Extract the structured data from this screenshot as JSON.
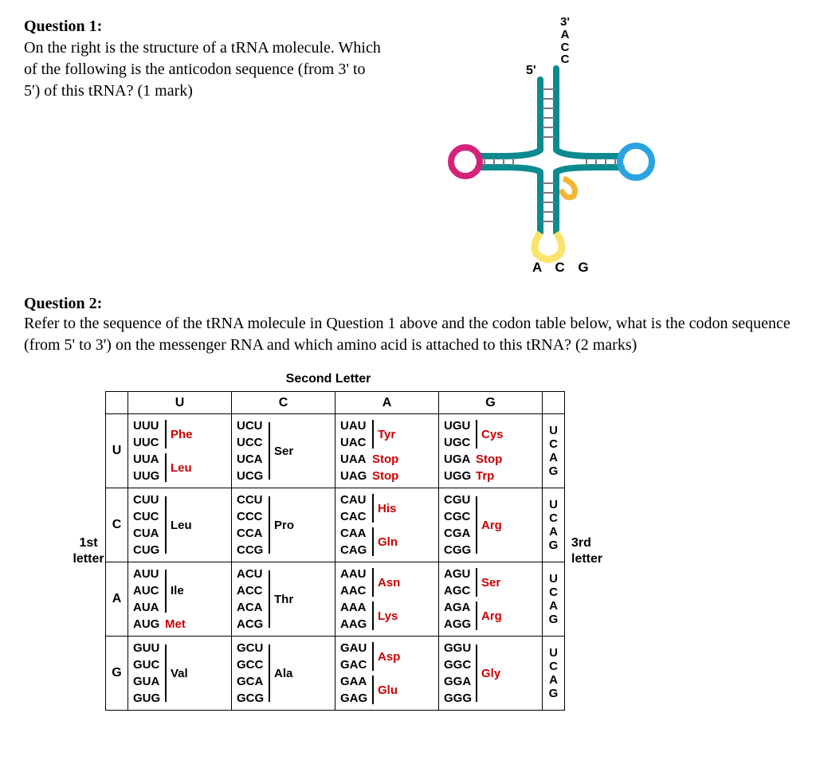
{
  "q1": {
    "title": "Question 1:",
    "text": "On the right is the structure of a tRNA molecule. Which of the following is the anticodon sequence (from 3' to 5') of this tRNA? (1 mark)"
  },
  "trna": {
    "three_prime": "3'",
    "acceptor_seq": [
      "A",
      "C",
      "C"
    ],
    "five_prime": "5'",
    "anticodon": "A C G",
    "colors": {
      "stem": "#0b8a8f",
      "d_loop": "#d4227a",
      "t_loop": "#2aa4e0",
      "var_loop": "#f6b531",
      "anticodon_loop": "#fce36b",
      "tick": "#7a7a7a"
    }
  },
  "q2": {
    "title": "Question 2:",
    "text": "Refer to the sequence of the tRNA molecule in Question 1 above and the codon table below, what is the codon sequence (from 5' to 3') on the messenger RNA and which amino acid is attached to this tRNA? (2 marks)"
  },
  "codon_table": {
    "title_second": "Second Letter",
    "title_first": "1st",
    "title_first2": "letter",
    "title_third": "3rd",
    "title_third2": "letter",
    "cols": [
      "U",
      "C",
      "A",
      "G"
    ],
    "rows": [
      "U",
      "C",
      "A",
      "G"
    ],
    "third": [
      "U",
      "C",
      "A",
      "G"
    ],
    "cells": {
      "U": {
        "U": {
          "codons": [
            "UUU",
            "UUC",
            "UUA",
            "UUG"
          ],
          "aa": [
            {
              "t": "Phe",
              "r": 2,
              "red": true
            },
            {
              "t": "Leu",
              "r": 2,
              "red": true
            }
          ]
        },
        "C": {
          "codons": [
            "UCU",
            "UCC",
            "UCA",
            "UCG"
          ],
          "aa": [
            {
              "t": "Ser",
              "r": 4,
              "red": false
            }
          ]
        },
        "A": {
          "codons": [
            "UAU",
            "UAC",
            "UAA",
            "UAG"
          ],
          "aa": [
            {
              "t": "Tyr",
              "r": 2,
              "red": true
            },
            {
              "t": "Stop",
              "r": 1,
              "red": true
            },
            {
              "t": "Stop",
              "r": 1,
              "red": true
            }
          ]
        },
        "G": {
          "codons": [
            "UGU",
            "UGC",
            "UGA",
            "UGG"
          ],
          "aa": [
            {
              "t": "Cys",
              "r": 2,
              "red": true
            },
            {
              "t": "Stop",
              "r": 1,
              "red": true
            },
            {
              "t": "Trp",
              "r": 1,
              "red": true
            }
          ]
        }
      },
      "C": {
        "U": {
          "codons": [
            "CUU",
            "CUC",
            "CUA",
            "CUG"
          ],
          "aa": [
            {
              "t": "Leu",
              "r": 4,
              "red": false
            }
          ]
        },
        "C": {
          "codons": [
            "CCU",
            "CCC",
            "CCA",
            "CCG"
          ],
          "aa": [
            {
              "t": "Pro",
              "r": 4,
              "red": false
            }
          ]
        },
        "A": {
          "codons": [
            "CAU",
            "CAC",
            "CAA",
            "CAG"
          ],
          "aa": [
            {
              "t": "His",
              "r": 2,
              "red": true
            },
            {
              "t": "Gln",
              "r": 2,
              "red": true
            }
          ]
        },
        "G": {
          "codons": [
            "CGU",
            "CGC",
            "CGA",
            "CGG"
          ],
          "aa": [
            {
              "t": "Arg",
              "r": 4,
              "red": true
            }
          ]
        }
      },
      "A": {
        "U": {
          "codons": [
            "AUU",
            "AUC",
            "AUA",
            "AUG"
          ],
          "aa": [
            {
              "t": "Ile",
              "r": 3,
              "red": false
            },
            {
              "t": "Met",
              "r": 1,
              "red": true
            }
          ]
        },
        "C": {
          "codons": [
            "ACU",
            "ACC",
            "ACA",
            "ACG"
          ],
          "aa": [
            {
              "t": "Thr",
              "r": 4,
              "red": false
            }
          ]
        },
        "A": {
          "codons": [
            "AAU",
            "AAC",
            "AAA",
            "AAG"
          ],
          "aa": [
            {
              "t": "Asn",
              "r": 2,
              "red": true
            },
            {
              "t": "Lys",
              "r": 2,
              "red": true
            }
          ]
        },
        "G": {
          "codons": [
            "AGU",
            "AGC",
            "AGA",
            "AGG"
          ],
          "aa": [
            {
              "t": "Ser",
              "r": 2,
              "red": true
            },
            {
              "t": "Arg",
              "r": 2,
              "red": true
            }
          ]
        }
      },
      "G": {
        "U": {
          "codons": [
            "GUU",
            "GUC",
            "GUA",
            "GUG"
          ],
          "aa": [
            {
              "t": "Val",
              "r": 4,
              "red": false
            }
          ]
        },
        "C": {
          "codons": [
            "GCU",
            "GCC",
            "GCA",
            "GCG"
          ],
          "aa": [
            {
              "t": "Ala",
              "r": 4,
              "red": false
            }
          ]
        },
        "A": {
          "codons": [
            "GAU",
            "GAC",
            "GAA",
            "GAG"
          ],
          "aa": [
            {
              "t": "Asp",
              "r": 2,
              "red": true
            },
            {
              "t": "Glu",
              "r": 2,
              "red": true
            }
          ]
        },
        "G": {
          "codons": [
            "GGU",
            "GGC",
            "GGA",
            "GGG"
          ],
          "aa": [
            {
              "t": "Gly",
              "r": 4,
              "red": true
            }
          ]
        }
      }
    }
  }
}
